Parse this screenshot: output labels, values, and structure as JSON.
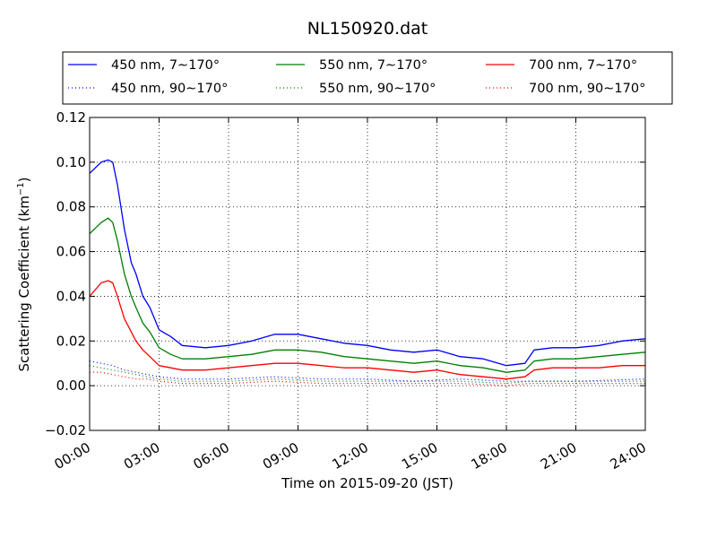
{
  "chart_data": {
    "type": "line",
    "title": "NL150920.dat",
    "xlabel": "Time on 2015-09-20 (JST)",
    "ylabel_main": "Scattering Coefficient (km",
    "ylabel_sup": "−1",
    "ylabel_end": ")",
    "x_unit": "hours",
    "xlim": [
      0,
      24
    ],
    "ylim": [
      -0.02,
      0.12
    ],
    "grid": true,
    "legend_position": "top",
    "x_ticks": [
      {
        "value": 0,
        "label": "00:00"
      },
      {
        "value": 3,
        "label": "03:00"
      },
      {
        "value": 6,
        "label": "06:00"
      },
      {
        "value": 9,
        "label": "09:00"
      },
      {
        "value": 12,
        "label": "12:00"
      },
      {
        "value": 15,
        "label": "15:00"
      },
      {
        "value": 18,
        "label": "18:00"
      },
      {
        "value": 21,
        "label": "21:00"
      },
      {
        "value": 24,
        "label": "24:00"
      }
    ],
    "y_ticks": [
      {
        "value": -0.02,
        "label": "−0.02"
      },
      {
        "value": 0.0,
        "label": "0.00"
      },
      {
        "value": 0.02,
        "label": "0.02"
      },
      {
        "value": 0.04,
        "label": "0.04"
      },
      {
        "value": 0.06,
        "label": "0.06"
      },
      {
        "value": 0.08,
        "label": "0.08"
      },
      {
        "value": 0.1,
        "label": "0.10"
      },
      {
        "value": 0.12,
        "label": "0.12"
      }
    ],
    "series": [
      {
        "name": "450 nm, 7∼170°",
        "color": "#0000ff",
        "style": "solid",
        "x": [
          0,
          0.5,
          0.8,
          1.0,
          1.2,
          1.5,
          1.8,
          2.0,
          2.3,
          2.6,
          3.0,
          3.5,
          4.0,
          5.0,
          6.0,
          7.0,
          8.0,
          9.0,
          10.0,
          11.0,
          12.0,
          13.0,
          14.0,
          15.0,
          16.0,
          17.0,
          18.0,
          18.8,
          19.2,
          20.0,
          21.0,
          22.0,
          23.0,
          24.0
        ],
        "y": [
          0.095,
          0.1,
          0.101,
          0.1,
          0.09,
          0.07,
          0.055,
          0.05,
          0.04,
          0.035,
          0.025,
          0.022,
          0.018,
          0.017,
          0.018,
          0.02,
          0.023,
          0.023,
          0.021,
          0.019,
          0.018,
          0.016,
          0.015,
          0.016,
          0.013,
          0.012,
          0.009,
          0.01,
          0.016,
          0.017,
          0.017,
          0.018,
          0.02,
          0.021
        ]
      },
      {
        "name": "550 nm, 7∼170°",
        "color": "#008000",
        "style": "solid",
        "x": [
          0,
          0.5,
          0.8,
          1.0,
          1.2,
          1.5,
          1.8,
          2.0,
          2.3,
          2.6,
          3.0,
          3.5,
          4.0,
          5.0,
          6.0,
          7.0,
          8.0,
          9.0,
          10.0,
          11.0,
          12.0,
          13.0,
          14.0,
          15.0,
          16.0,
          17.0,
          18.0,
          18.8,
          19.2,
          20.0,
          21.0,
          22.0,
          23.0,
          24.0
        ],
        "y": [
          0.068,
          0.073,
          0.075,
          0.073,
          0.065,
          0.05,
          0.04,
          0.035,
          0.028,
          0.024,
          0.017,
          0.014,
          0.012,
          0.012,
          0.013,
          0.014,
          0.016,
          0.016,
          0.015,
          0.013,
          0.012,
          0.011,
          0.01,
          0.011,
          0.009,
          0.008,
          0.006,
          0.007,
          0.011,
          0.012,
          0.012,
          0.013,
          0.014,
          0.015
        ]
      },
      {
        "name": "700 nm, 7∼170°",
        "color": "#ff0000",
        "style": "solid",
        "x": [
          0,
          0.5,
          0.8,
          1.0,
          1.2,
          1.5,
          1.8,
          2.0,
          2.3,
          2.6,
          3.0,
          3.5,
          4.0,
          5.0,
          6.0,
          7.0,
          8.0,
          9.0,
          10.0,
          11.0,
          12.0,
          13.0,
          14.0,
          15.0,
          16.0,
          17.0,
          18.0,
          18.8,
          19.2,
          20.0,
          21.0,
          22.0,
          23.0,
          24.0
        ],
        "y": [
          0.04,
          0.046,
          0.047,
          0.046,
          0.04,
          0.03,
          0.024,
          0.02,
          0.016,
          0.013,
          0.009,
          0.008,
          0.007,
          0.007,
          0.008,
          0.009,
          0.01,
          0.01,
          0.009,
          0.008,
          0.008,
          0.007,
          0.006,
          0.007,
          0.005,
          0.004,
          0.003,
          0.004,
          0.007,
          0.008,
          0.008,
          0.008,
          0.009,
          0.009
        ]
      },
      {
        "name": "450 nm, 90∼170°",
        "color": "#0000ff",
        "style": "dotted",
        "x": [
          0,
          0.5,
          1.0,
          1.5,
          2.0,
          2.5,
          3.0,
          4.0,
          6.0,
          8.0,
          10.0,
          12.0,
          14.0,
          16.0,
          18.0,
          19.0,
          21.0,
          24.0
        ],
        "y": [
          0.011,
          0.01,
          0.009,
          0.007,
          0.006,
          0.005,
          0.004,
          0.003,
          0.003,
          0.004,
          0.003,
          0.003,
          0.002,
          0.003,
          0.002,
          0.002,
          0.002,
          0.003
        ]
      },
      {
        "name": "550 nm, 90∼170°",
        "color": "#008000",
        "style": "dotted",
        "x": [
          0,
          0.5,
          1.0,
          1.5,
          2.0,
          2.5,
          3.0,
          4.0,
          6.0,
          8.0,
          10.0,
          12.0,
          14.0,
          16.0,
          18.0,
          19.0,
          21.0,
          24.0
        ],
        "y": [
          0.009,
          0.008,
          0.007,
          0.006,
          0.005,
          0.004,
          0.003,
          0.002,
          0.002,
          0.003,
          0.002,
          0.002,
          0.002,
          0.002,
          0.001,
          0.002,
          0.002,
          0.002
        ]
      },
      {
        "name": "700 nm, 90∼170°",
        "color": "#ff0000",
        "style": "dotted",
        "x": [
          0,
          0.5,
          1.0,
          1.5,
          2.0,
          2.5,
          3.0,
          4.0,
          6.0,
          8.0,
          10.0,
          12.0,
          14.0,
          16.0,
          18.0,
          19.0,
          21.0,
          24.0
        ],
        "y": [
          0.006,
          0.006,
          0.005,
          0.004,
          0.003,
          0.003,
          0.002,
          0.001,
          0.001,
          0.002,
          0.001,
          0.001,
          0.001,
          0.001,
          0.0,
          0.001,
          0.001,
          0.001
        ]
      }
    ]
  }
}
